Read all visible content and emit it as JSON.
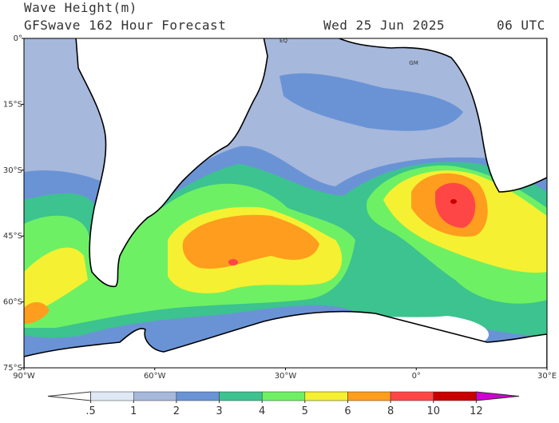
{
  "header": {
    "title": "Wave Height(m)",
    "subtitle": "GFSwave 162 Hour Forecast",
    "date": "Wed 25 Jun 2025",
    "time": "06 UTC"
  },
  "map": {
    "lonlim": [
      -90,
      30
    ],
    "latlim": [
      -75,
      0
    ],
    "lat_ticks": [
      {
        "value": 0,
        "label": "0°"
      },
      {
        "value": -15,
        "label": "15°S"
      },
      {
        "value": -30,
        "label": "30°S"
      },
      {
        "value": -45,
        "label": "45°S"
      },
      {
        "value": -60,
        "label": "60°S"
      },
      {
        "value": -75,
        "label": "75°S"
      }
    ],
    "lon_ticks": [
      {
        "value": -90,
        "label": "90°W"
      },
      {
        "value": -60,
        "label": "60°W"
      },
      {
        "value": -30,
        "label": "30°W"
      },
      {
        "value": 0,
        "label": "0°"
      },
      {
        "value": 30,
        "label": "30°E"
      }
    ],
    "annotations": [
      "EQ",
      "GM"
    ]
  },
  "colorbar": {
    "levels": [
      {
        "value": 0.5,
        "label": ".5"
      },
      1,
      2,
      3,
      4,
      5,
      6,
      8,
      10,
      12
    ],
    "colors": [
      "#ffffff",
      "#dfe9f5",
      "#a6b8dc",
      "#6a93d6",
      "#3cc38f",
      "#6ef064",
      "#f5f032",
      "#ff9d1e",
      "#ff4646",
      "#c80000",
      "#d200d2"
    ]
  }
}
